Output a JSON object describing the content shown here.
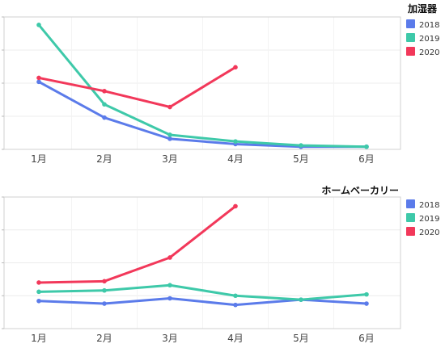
{
  "chart_data": [
    {
      "type": "line",
      "title": "加湿器",
      "categories": [
        "1月",
        "2月",
        "3月",
        "4月",
        "5月",
        "6月"
      ],
      "ylim": [
        0,
        100
      ],
      "grid": true,
      "legend_position": "right",
      "series": [
        {
          "name": "2018",
          "color": "#5b7bea",
          "values": [
            51,
            24,
            8,
            4,
            2,
            2
          ]
        },
        {
          "name": "2019",
          "color": "#3ec9a9",
          "values": [
            94,
            34,
            11,
            6,
            3,
            2
          ]
        },
        {
          "name": "2020",
          "color": "#f2385a",
          "values": [
            54,
            44,
            32,
            62,
            null,
            null
          ]
        }
      ]
    },
    {
      "type": "line",
      "title": "ホームベーカリー",
      "categories": [
        "1月",
        "2月",
        "3月",
        "4月",
        "5月",
        "6月"
      ],
      "ylim": [
        0,
        100
      ],
      "grid": true,
      "legend_position": "right",
      "series": [
        {
          "name": "2018",
          "color": "#5b7bea",
          "values": [
            21,
            19,
            23,
            18,
            22,
            19
          ]
        },
        {
          "name": "2019",
          "color": "#3ec9a9",
          "values": [
            28,
            29,
            33,
            25,
            22,
            26
          ]
        },
        {
          "name": "2020",
          "color": "#f2385a",
          "values": [
            35,
            36,
            54,
            93,
            null,
            null
          ]
        }
      ]
    }
  ]
}
